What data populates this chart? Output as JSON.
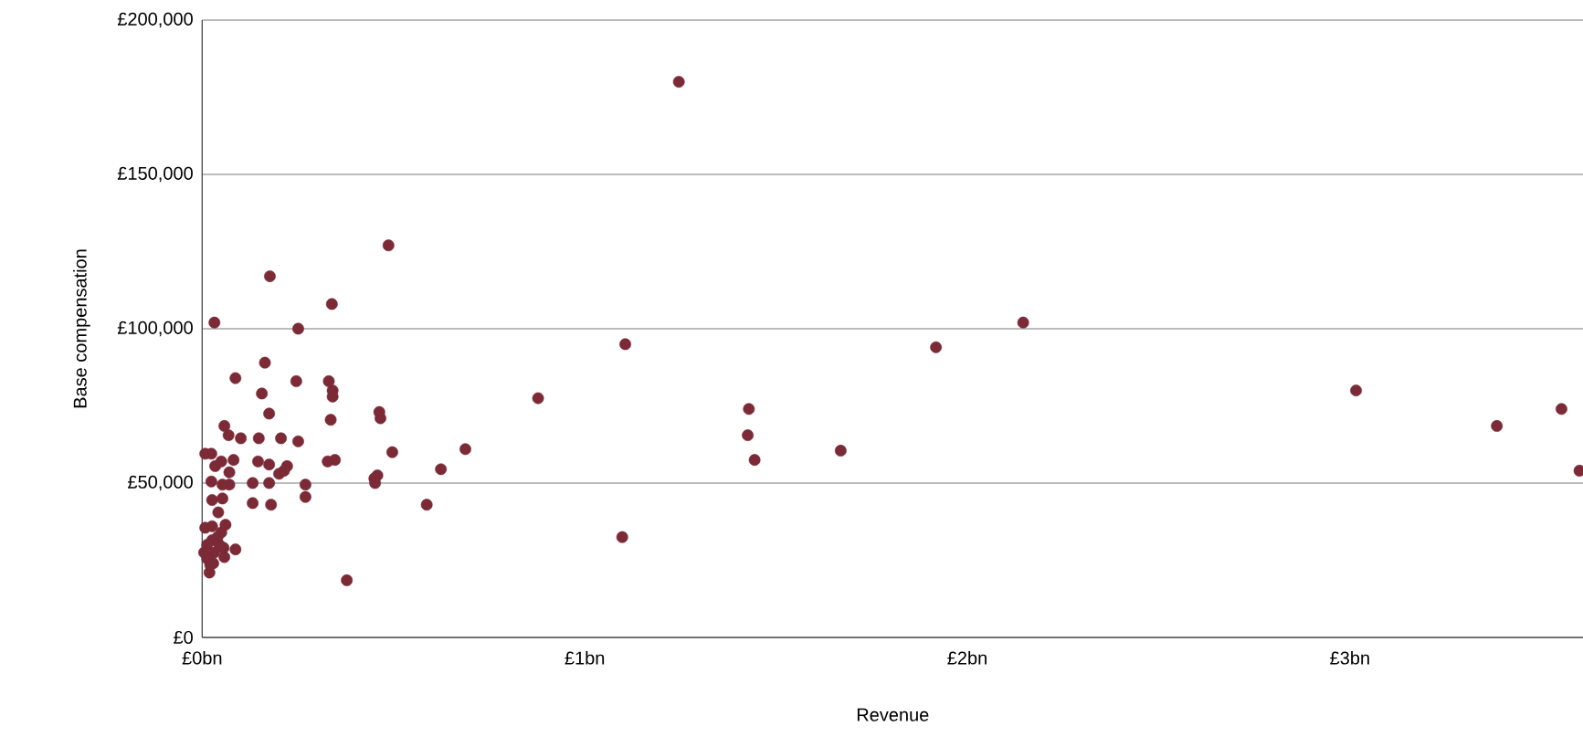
{
  "chart_data": {
    "type": "scatter",
    "xlabel": "Revenue",
    "ylabel": "Base compensation",
    "color": "#7b2a36",
    "marker": "circle",
    "grid": "y",
    "xlim": [
      0,
      3.61
    ],
    "ylim": [
      0,
      200000
    ],
    "xticks": [
      {
        "value": 0,
        "label": "£0bn"
      },
      {
        "value": 1,
        "label": "£1bn"
      },
      {
        "value": 2,
        "label": "£2bn"
      },
      {
        "value": 3,
        "label": "£3bn"
      }
    ],
    "yticks": [
      {
        "value": 0,
        "label": "£0"
      },
      {
        "value": 50000,
        "label": "£50,000"
      },
      {
        "value": 100000,
        "label": "£100,000"
      },
      {
        "value": 150000,
        "label": "£150,000"
      },
      {
        "value": 200000,
        "label": "£200,000"
      }
    ],
    "x": [
      1.246,
      0.487,
      0.177,
      0.339,
      0.032,
      2.146,
      0.251,
      1.106,
      1.918,
      0.164,
      0.087,
      0.246,
      0.331,
      0.341,
      3.016,
      0.156,
      0.341,
      0.878,
      0.175,
      0.463,
      1.429,
      3.553,
      0.466,
      0.336,
      3.384,
      0.058,
      0.069,
      0.148,
      0.101,
      0.206,
      0.251,
      1.426,
      0.688,
      1.669,
      0.008,
      0.024,
      0.497,
      1.444,
      0.082,
      0.05,
      0.347,
      0.328,
      0.146,
      0.175,
      0.034,
      0.222,
      0.624,
      0.214,
      0.201,
      0.071,
      0.458,
      0.45,
      0.024,
      0.132,
      0.175,
      0.071,
      0.27,
      0.452,
      0.053,
      0.026,
      0.053,
      0.132,
      0.18,
      0.27,
      0.587,
      0.042,
      0.061,
      0.026,
      0.008,
      0.05,
      0.026,
      0.013,
      0.045,
      0.087,
      0.005,
      0.032,
      0.058,
      0.013,
      0.029,
      0.019,
      1.098,
      0.378,
      3.6,
      0.04,
      0.056,
      0.021
    ],
    "values": [
      180000,
      127000,
      117000,
      108000,
      102000,
      102000,
      100000,
      95000,
      94000,
      89000,
      84000,
      83000,
      83000,
      80000,
      80000,
      79000,
      78000,
      77500,
      72500,
      73000,
      74000,
      74000,
      71000,
      70500,
      68500,
      68500,
      65500,
      64500,
      64500,
      64500,
      63500,
      65500,
      61000,
      60500,
      59500,
      59500,
      60000,
      57500,
      57500,
      57000,
      57500,
      57000,
      57000,
      56000,
      55500,
      55500,
      54500,
      54000,
      53000,
      53500,
      52500,
      51500,
      50500,
      50000,
      50000,
      49500,
      49500,
      50000,
      49500,
      44500,
      45000,
      43500,
      43000,
      45500,
      43000,
      40500,
      36500,
      36000,
      35500,
      34000,
      31500,
      30000,
      30000,
      28500,
      27500,
      27500,
      26000,
      25500,
      24000,
      21000,
      32500,
      18500,
      54000,
      32500,
      29000,
      23500
    ]
  }
}
